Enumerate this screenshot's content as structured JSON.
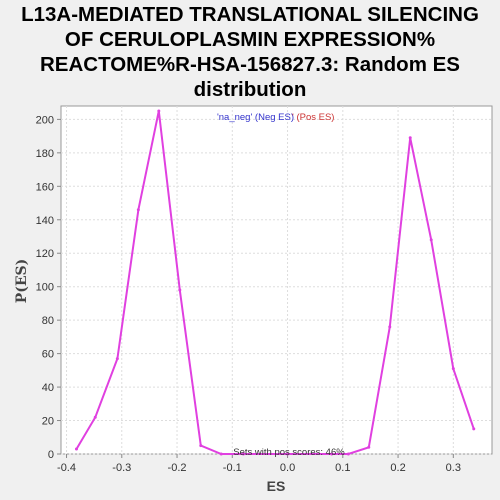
{
  "chart_data": {
    "type": "line",
    "title": "L13A-MEDIATED TRANSLATIONAL SILENCING\nOF CERULOPLASMIN EXPRESSION%\nREACTOME%R-HSA-156827.3: Random ES\ndistribution",
    "xlabel": "ES",
    "ylabel": "P(ES)",
    "xlim": [
      -0.41,
      0.37
    ],
    "ylim": [
      0,
      208
    ],
    "x_ticks": [
      -0.4,
      -0.3,
      -0.2,
      -0.1,
      0.0,
      0.1,
      0.2,
      0.3
    ],
    "x_tick_labels": [
      "-0.4",
      "-0.3",
      "-0.2",
      "-0.1",
      "0.0",
      "0.1",
      "0.2",
      "0.3"
    ],
    "y_ticks": [
      0,
      20,
      40,
      60,
      80,
      100,
      120,
      140,
      160,
      180,
      200
    ],
    "y_tick_labels": [
      "0",
      "20",
      "40",
      "60",
      "80",
      "100",
      "120",
      "140",
      "160",
      "180",
      "200"
    ],
    "grid": true,
    "legend": {
      "placement": "top-center",
      "neg_label": "'na_neg' (Neg ES)",
      "pos_label": "' (Pos ES)",
      "neg_color": "#3333cc",
      "pos_color": "#cc3333"
    },
    "annotation": "Sets with pos scores: 46%",
    "series_color": "#e040e0",
    "series": [
      {
        "x": [
          -0.382,
          -0.348,
          -0.308,
          -0.27,
          -0.233,
          -0.195,
          -0.157,
          -0.12,
          -0.08,
          0.0,
          0.08,
          0.11,
          0.147,
          0.185,
          0.222,
          0.26,
          0.3,
          0.337
        ],
        "values": [
          3,
          22,
          57,
          146,
          205,
          98,
          5,
          0,
          0,
          0,
          0,
          0,
          4,
          76,
          189,
          128,
          51,
          15
        ]
      }
    ]
  }
}
